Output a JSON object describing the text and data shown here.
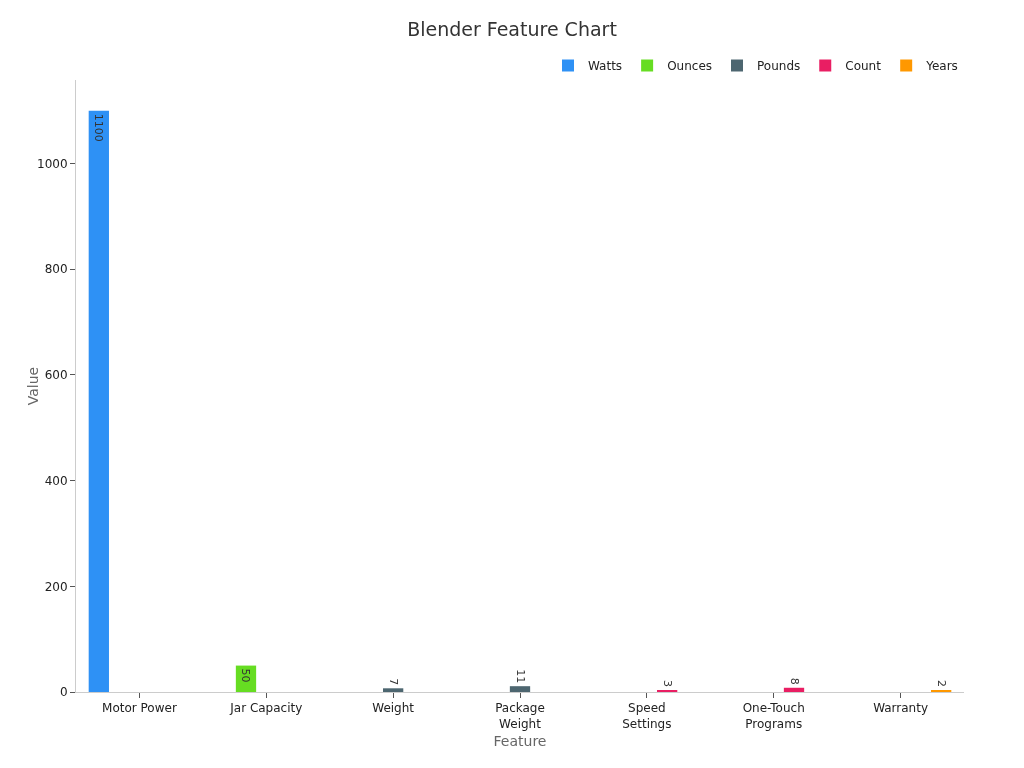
{
  "chart_data": {
    "type": "bar",
    "title": "Blender Feature Chart",
    "xlabel": "Feature",
    "ylabel": "Value",
    "categories": [
      "Motor Power",
      "Jar Capacity",
      "Weight",
      "Package\nWeight",
      "Speed\nSettings",
      "One-Touch\nPrograms",
      "Warranty"
    ],
    "series": [
      {
        "name": "Watts",
        "color": "#2e91f5",
        "values": [
          1100,
          null,
          null,
          null,
          null,
          null,
          null
        ]
      },
      {
        "name": "Ounces",
        "color": "#66dd22",
        "values": [
          null,
          50,
          null,
          null,
          null,
          null,
          null
        ]
      },
      {
        "name": "Pounds",
        "color": "#4d6670",
        "values": [
          null,
          null,
          7,
          11,
          null,
          null,
          null
        ]
      },
      {
        "name": "Count",
        "color": "#e91e63",
        "values": [
          null,
          null,
          null,
          null,
          3,
          8,
          null
        ]
      },
      {
        "name": "Years",
        "color": "#ff9800",
        "values": [
          null,
          null,
          null,
          null,
          null,
          null,
          2
        ]
      }
    ],
    "ylim": [
      0,
      1158
    ],
    "yticks": [
      0,
      200,
      400,
      600,
      800,
      1000
    ],
    "grid": false,
    "legend": "top right",
    "data_labels": true
  }
}
